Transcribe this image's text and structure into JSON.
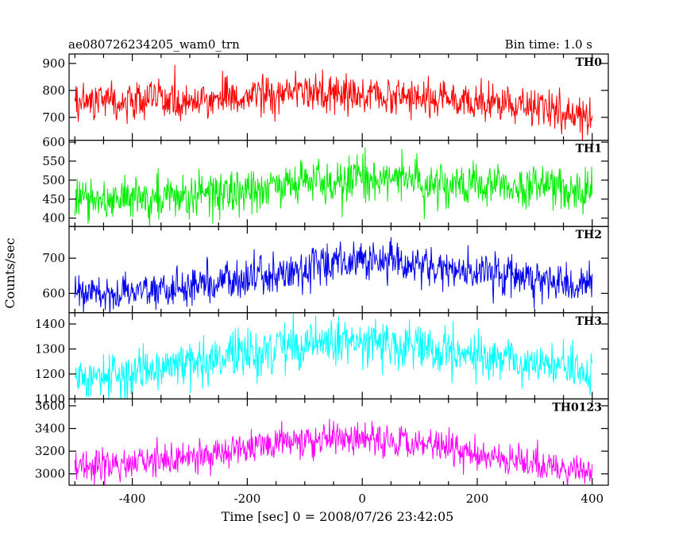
{
  "chart_data": {
    "type": "line",
    "title_left": "ae080726234205_wam0_trn",
    "title_right": "Bin time: 1.0 s",
    "xlabel": "Time [sec] 0 = 2008/07/26 23:42:05",
    "ylabel": "Counts/sec",
    "xlim": [
      -510,
      428
    ],
    "x_ticks": [
      -400,
      -200,
      0,
      200,
      400
    ],
    "x_step": 1.0,
    "panels": [
      {
        "label": "TH0",
        "color": "#ff0000",
        "ylim": [
          615,
          935
        ],
        "y_ticks": [
          700,
          800,
          900
        ],
        "trend": {
          "x": [
            -500,
            -300,
            -100,
            0,
            100,
            300,
            400
          ],
          "y": [
            760,
            765,
            790,
            790,
            770,
            735,
            705
          ]
        },
        "noise": 35
      },
      {
        "label": "TH1",
        "color": "#00ee00",
        "ylim": [
          378,
          605
        ],
        "y_ticks": [
          400,
          450,
          500,
          550,
          600
        ],
        "trend": {
          "x": [
            -500,
            -300,
            -100,
            0,
            100,
            300,
            400
          ],
          "y": [
            450,
            460,
            490,
            505,
            495,
            480,
            470
          ]
        },
        "noise": 28
      },
      {
        "label": "TH2",
        "color": "#0000ee",
        "ylim": [
          545,
          790
        ],
        "y_ticks": [
          600,
          700
        ],
        "trend": {
          "x": [
            -500,
            -300,
            -100,
            0,
            100,
            300,
            400
          ],
          "y": [
            590,
            620,
            670,
            690,
            680,
            640,
            625
          ]
        },
        "noise": 28
      },
      {
        "label": "TH3",
        "color": "#00ffff",
        "ylim": [
          1100,
          1445
        ],
        "y_ticks": [
          1100,
          1200,
          1300,
          1400
        ],
        "trend": {
          "x": [
            -500,
            -300,
            -100,
            0,
            100,
            300,
            400
          ],
          "y": [
            1180,
            1240,
            1320,
            1330,
            1305,
            1240,
            1210
          ]
        },
        "noise": 45
      },
      {
        "label": "TH0123",
        "color": "#ff00ff",
        "ylim": [
          2900,
          3660
        ],
        "y_ticks": [
          3000,
          3200,
          3400,
          3600
        ],
        "trend": {
          "x": [
            -500,
            -300,
            -100,
            0,
            100,
            300,
            400
          ],
          "y": [
            3050,
            3150,
            3300,
            3310,
            3260,
            3080,
            3010
          ]
        },
        "noise": 70
      }
    ]
  }
}
